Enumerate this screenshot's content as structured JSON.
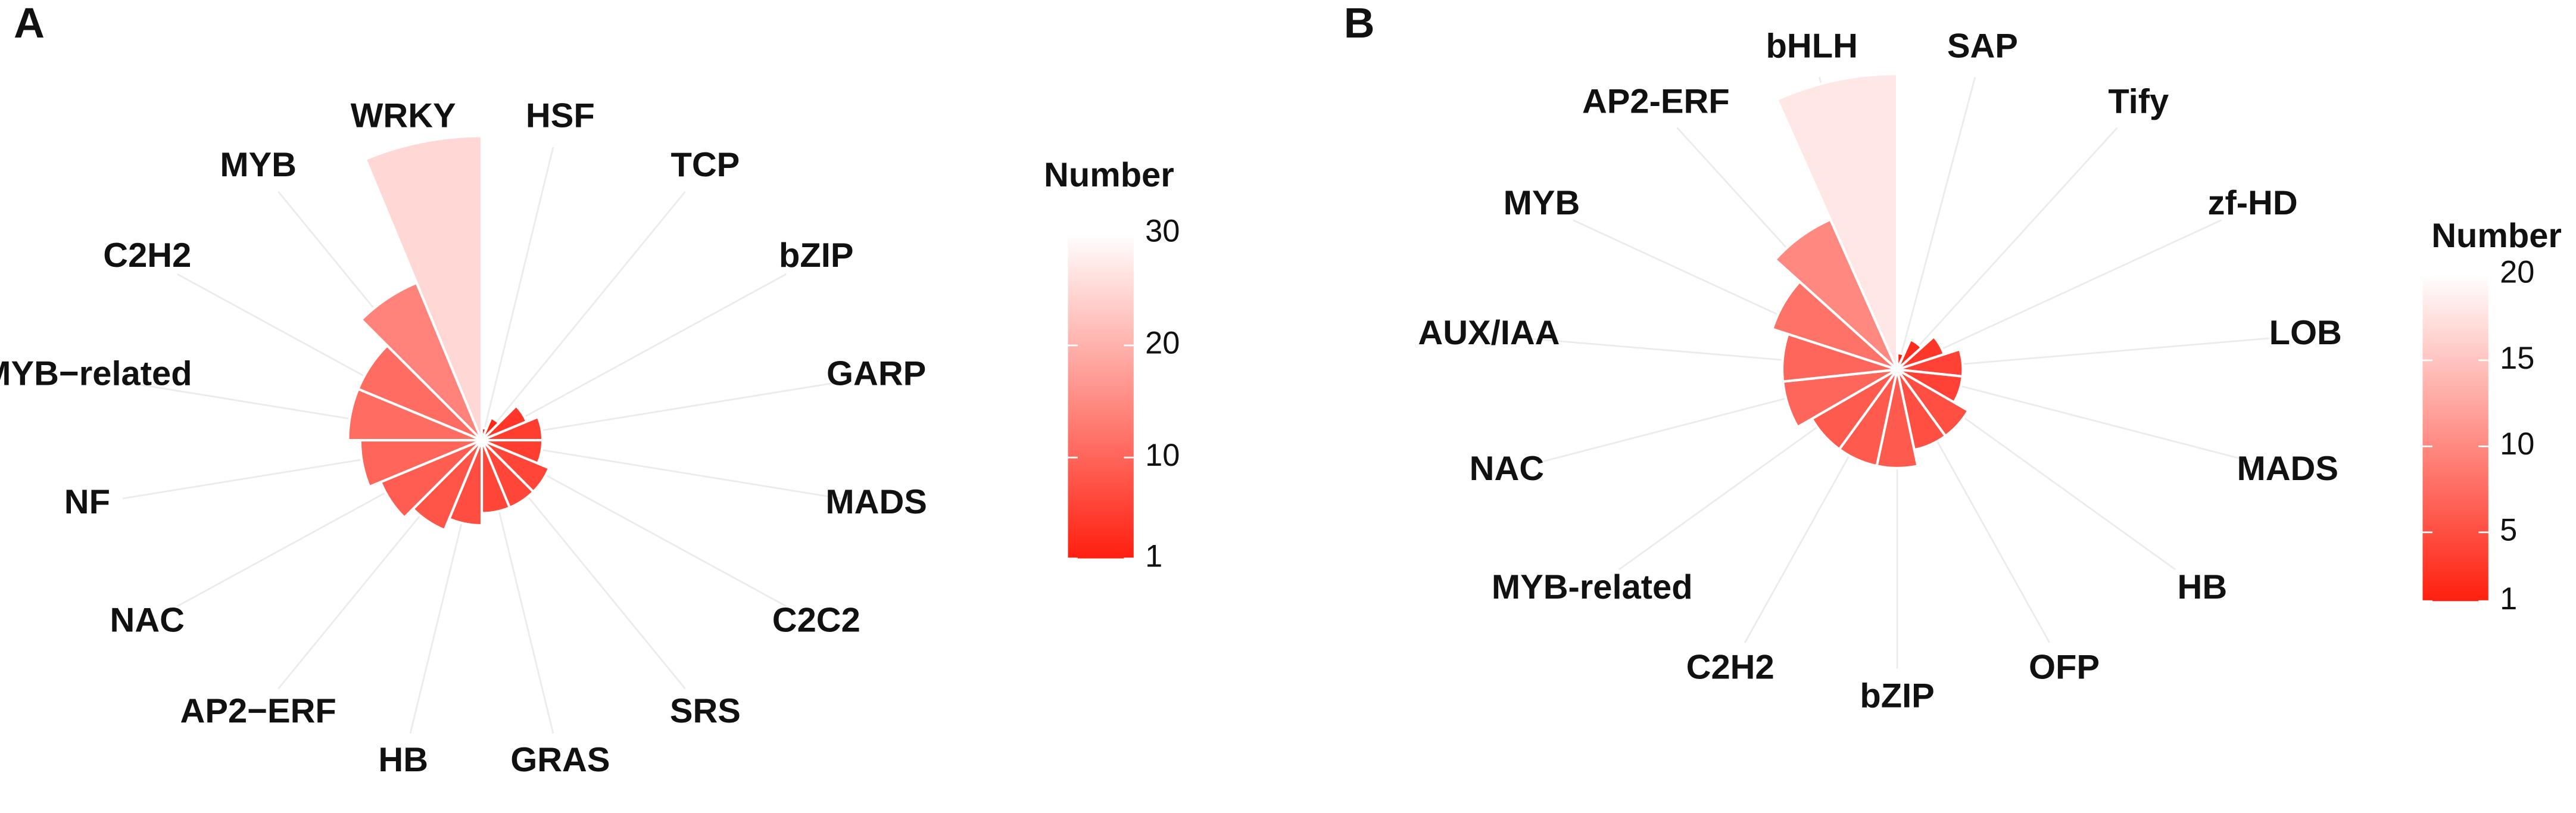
{
  "chart_data": [
    {
      "type": "polar-bar",
      "panel_label": "A",
      "categories": [
        "HSF",
        "TCP",
        "bZIP",
        "GARP",
        "MADS",
        "C2C2",
        "SRS",
        "GRAS",
        "HB",
        "AP2−ERF",
        "NAC",
        "NF",
        "MYB−related",
        "C2H2",
        "MYB",
        "WRKY"
      ],
      "values": [
        1,
        2,
        4,
        5,
        5,
        6,
        6,
        6,
        7,
        8,
        9,
        10,
        11,
        11,
        14,
        25
      ],
      "ylim": [
        0,
        27
      ],
      "legend_title": "Number",
      "colorlim": [
        1,
        30
      ],
      "colorbar_ticks": [
        1,
        10,
        20,
        30
      ],
      "color_low": "#ff1f0f",
      "color_high": "#ffffff"
    },
    {
      "type": "polar-bar",
      "panel_label": "B",
      "categories": [
        "SAP",
        "Tify",
        "zf-HD",
        "LOB",
        "MADS",
        "HB",
        "OFP",
        "bZIP",
        "C2H2",
        "MYB-related",
        "NAC",
        "AUX/IAA",
        "MYB",
        "AP2-ERF",
        "bHLH"
      ],
      "values": [
        1,
        2,
        3,
        4,
        4,
        5,
        5,
        6,
        6,
        6,
        7,
        7,
        8,
        10,
        18
      ],
      "ylim": [
        0,
        20
      ],
      "legend_title": "Number",
      "colorlim": [
        1,
        20
      ],
      "colorbar_ticks": [
        1,
        5,
        10,
        15,
        20
      ],
      "color_low": "#ff1f0f",
      "color_high": "#ffffff"
    }
  ]
}
